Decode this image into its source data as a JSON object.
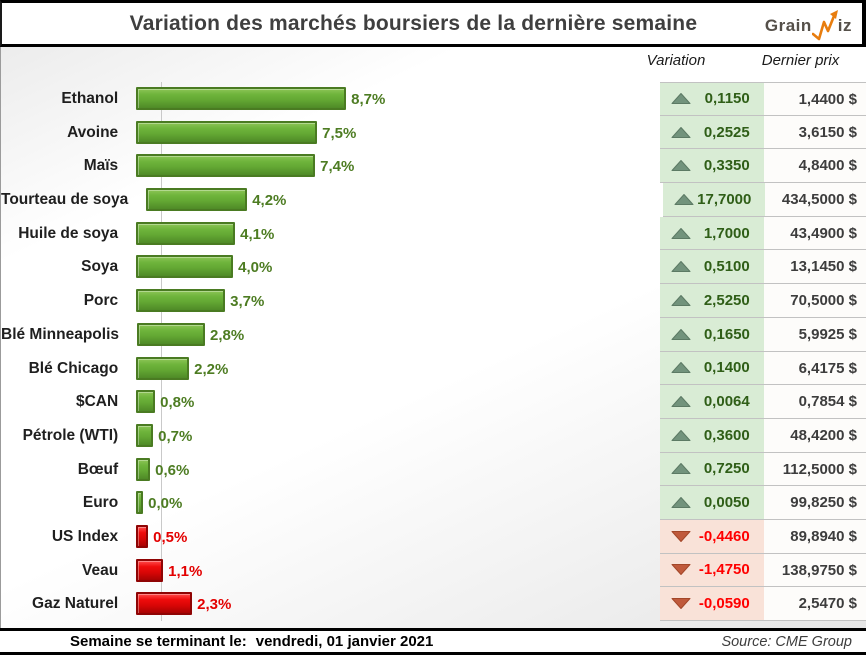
{
  "title": "Variation des marchés boursiers de la dernière semaine",
  "logo": {
    "part1": "Grain",
    "part2": "iz",
    "zigzag_icon_color": "#e87d0e"
  },
  "table_headers": {
    "variation": "Variation",
    "last_price": "Dernier prix"
  },
  "footer": {
    "week_label": "Semaine se terminant le:",
    "week_date": "vendredi, 01 janvier 2021",
    "source": "Source: CME Group"
  },
  "colors": {
    "bar_up": "#64a934",
    "bar_up_border": "#4a7b22",
    "bar_down": "#ee0c0c",
    "bar_down_border": "#8f0404",
    "var_bg_up": "#d9ecd5",
    "var_bg_down": "#f9e2d8",
    "tri_up_fill": "#72937c",
    "tri_up_stroke": "#5c7a64",
    "tri_down_fill": "#c05a3c",
    "tri_down_stroke": "#a34729",
    "pct_up_text": "#4d7c22",
    "pct_down_text": "#e30000",
    "var_up_text": "#2f5e17",
    "var_down_text": "#ff0000"
  },
  "chart_data": {
    "type": "bar",
    "orientation": "horizontal",
    "title": "Variation des marchés boursiers de la dernière semaine",
    "xlabel": "",
    "ylabel": "",
    "xlim": [
      0,
      9
    ],
    "grid": false,
    "note": "Bar length = abs(percent change); red bars are declines shown with absolute-value labels",
    "categories": [
      "Ethanol",
      "Avoine",
      "Maïs",
      "Tourteau de soya",
      "Huile de soya",
      "Soya",
      "Porc",
      "Blé Minneapolis",
      "Blé Chicago",
      "$CAN",
      "Pétrole (WTI)",
      "Bœuf",
      "Euro",
      "US Index",
      "Veau",
      "Gaz Naturel"
    ],
    "values_pct": [
      8.7,
      7.5,
      7.4,
      4.2,
      4.1,
      4.0,
      3.7,
      2.8,
      2.2,
      0.8,
      0.7,
      0.6,
      0.0,
      -0.5,
      -1.1,
      -2.3
    ],
    "variation_abs": [
      0.115,
      0.2525,
      0.335,
      17.7,
      1.7,
      0.51,
      2.525,
      0.165,
      0.14,
      0.0064,
      0.36,
      0.725,
      0.005,
      -0.446,
      -1.475,
      -0.059
    ],
    "last_price": [
      1.44,
      3.615,
      4.84,
      434.5,
      43.49,
      13.145,
      70.5,
      5.9925,
      6.4175,
      0.7854,
      48.42,
      112.5,
      99.825,
      89.894,
      138.975,
      2.547
    ]
  },
  "rows": [
    {
      "label": "Ethanol",
      "pct": 8.7,
      "pct_label": "8,7%",
      "dir": "up",
      "variation": "0,1150",
      "price": "1,4400 $"
    },
    {
      "label": "Avoine",
      "pct": 7.5,
      "pct_label": "7,5%",
      "dir": "up",
      "variation": "0,2525",
      "price": "3,6150 $"
    },
    {
      "label": "Maïs",
      "pct": 7.4,
      "pct_label": "7,4%",
      "dir": "up",
      "variation": "0,3350",
      "price": "4,8400 $"
    },
    {
      "label": "Tourteau de soya",
      "pct": 4.2,
      "pct_label": "4,2%",
      "dir": "up",
      "variation": "17,7000",
      "price": "434,5000 $"
    },
    {
      "label": "Huile de soya",
      "pct": 4.1,
      "pct_label": "4,1%",
      "dir": "up",
      "variation": "1,7000",
      "price": "43,4900 $"
    },
    {
      "label": "Soya",
      "pct": 4.0,
      "pct_label": "4,0%",
      "dir": "up",
      "variation": "0,5100",
      "price": "13,1450 $"
    },
    {
      "label": "Porc",
      "pct": 3.7,
      "pct_label": "3,7%",
      "dir": "up",
      "variation": "2,5250",
      "price": "70,5000 $"
    },
    {
      "label": "Blé Minneapolis",
      "pct": 2.8,
      "pct_label": "2,8%",
      "dir": "up",
      "variation": "0,1650",
      "price": "5,9925 $"
    },
    {
      "label": "Blé Chicago",
      "pct": 2.2,
      "pct_label": "2,2%",
      "dir": "up",
      "variation": "0,1400",
      "price": "6,4175 $"
    },
    {
      "label": "$CAN",
      "pct": 0.8,
      "pct_label": "0,8%",
      "dir": "up",
      "variation": "0,0064",
      "price": "0,7854 $"
    },
    {
      "label": "Pétrole (WTI)",
      "pct": 0.7,
      "pct_label": "0,7%",
      "dir": "up",
      "variation": "0,3600",
      "price": "48,4200 $"
    },
    {
      "label": "Bœuf",
      "pct": 0.6,
      "pct_label": "0,6%",
      "dir": "up",
      "variation": "0,7250",
      "price": "112,5000 $"
    },
    {
      "label": "Euro",
      "pct": 0.0,
      "pct_label": "0,0%",
      "dir": "up",
      "variation": "0,0050",
      "price": "99,8250 $"
    },
    {
      "label": "US Index",
      "pct": 0.5,
      "pct_label": "0,5%",
      "dir": "down",
      "variation": "-0,4460",
      "price": "89,8940 $"
    },
    {
      "label": "Veau",
      "pct": 1.1,
      "pct_label": "1,1%",
      "dir": "down",
      "variation": "-1,4750",
      "price": "138,9750 $"
    },
    {
      "label": "Gaz Naturel",
      "pct": 2.3,
      "pct_label": "2,3%",
      "dir": "down",
      "variation": "-0,0590",
      "price": "2,5470 $"
    }
  ]
}
